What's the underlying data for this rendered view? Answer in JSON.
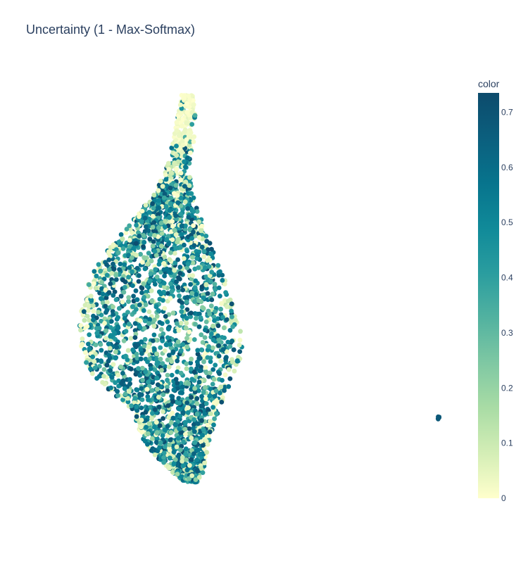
{
  "chart_data": {
    "type": "scatter",
    "title": "Uncertainty (1 - Max-Softmax)",
    "xlabel": "",
    "ylabel": "",
    "axes_visible": false,
    "grid": false,
    "legend": "none",
    "colorscale": [
      "#ffffcc",
      "#d4eeb6",
      "#a9dca5",
      "#7fc8a3",
      "#52b2a0",
      "#2a9d9f",
      "#108a99",
      "#07748d",
      "#0b5f7e",
      "#0d4b6c"
    ],
    "colorbar": {
      "title": "color",
      "range": [
        0,
        0.735
      ],
      "ticks": [
        0,
        0.1,
        0.2,
        0.3,
        0.4,
        0.5,
        0.6,
        0.7
      ],
      "tick_labels": [
        "0",
        "0.1",
        "0.2",
        "0.3",
        "0.4",
        "0.5",
        "0.6",
        "0.7"
      ],
      "placement": "right"
    },
    "clusters": [
      {
        "description": "main cluster with neck",
        "approx_points": 3200,
        "x_range": [
          0,
          10
        ],
        "y_range": [
          0,
          10
        ],
        "color_range": [
          0,
          0.735
        ],
        "neck_color": 0.02
      },
      {
        "description": "small isolated cluster",
        "approx_points": 6,
        "x_center": 19.5,
        "y_center": 3.9,
        "color": 0.68
      }
    ]
  }
}
